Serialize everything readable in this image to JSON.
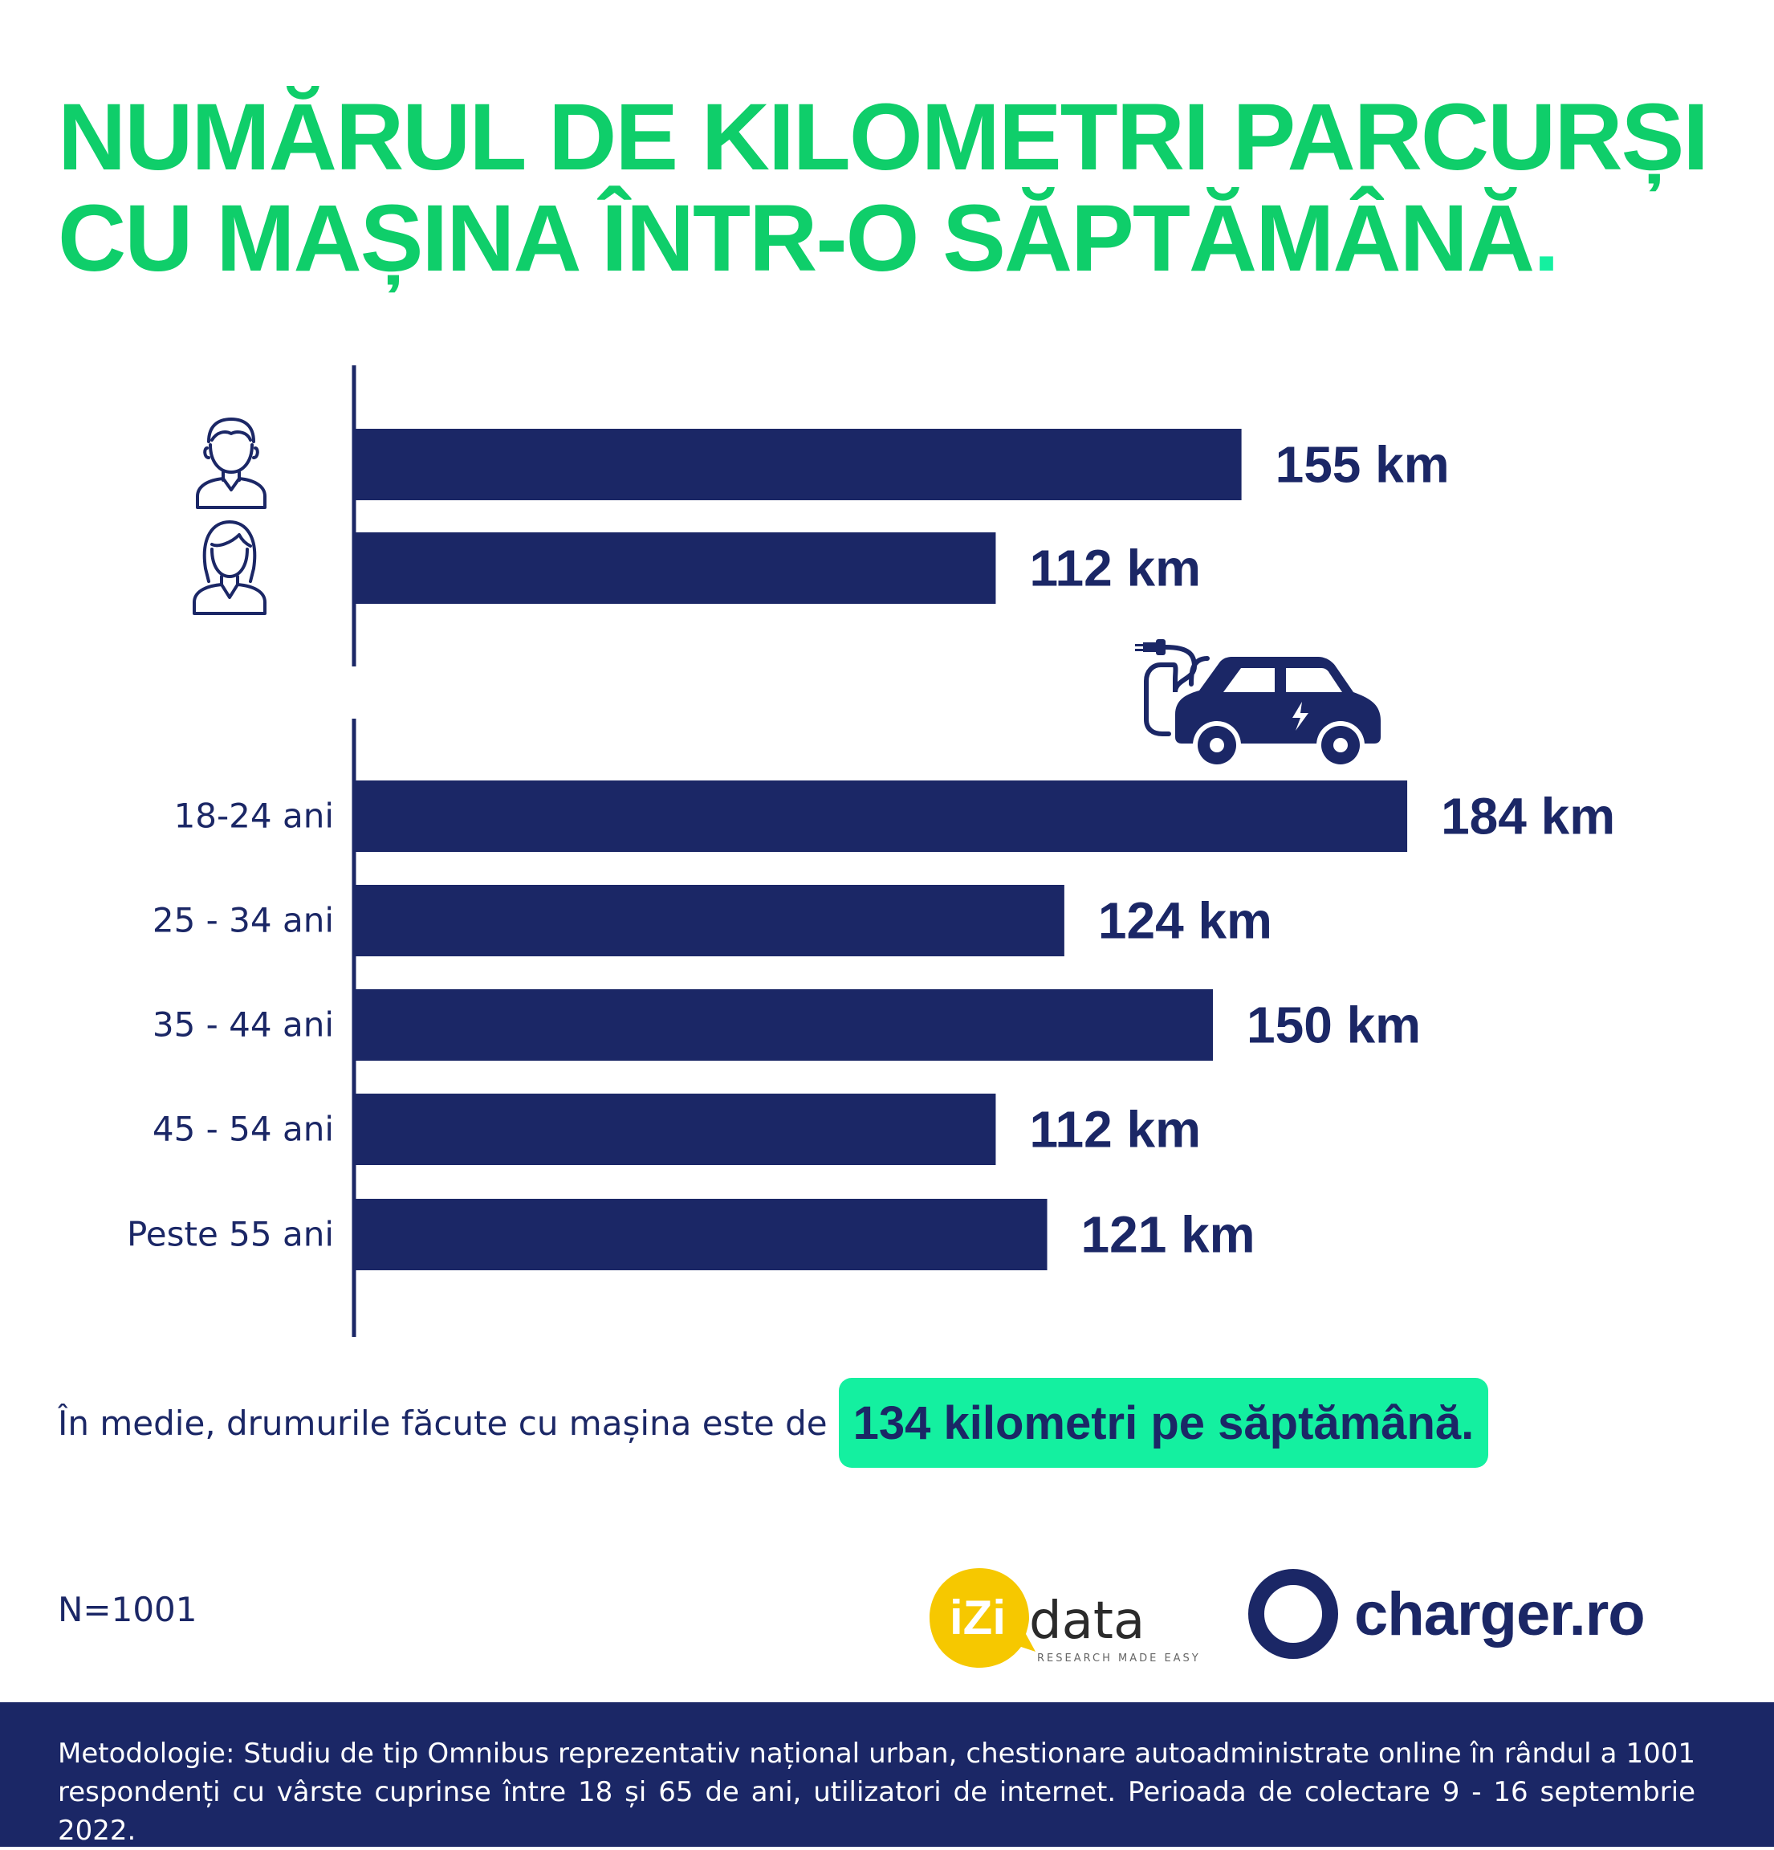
{
  "title": {
    "line1": "NUMĂRUL DE KILOMETRI PARCURȘI",
    "line2": "CU MAȘINA ÎNTR-O SĂPTĂMÂNĂ",
    "dot": "."
  },
  "colors": {
    "navy": "#1b2766",
    "green": "#0fce6a",
    "highlight": "#14f0a0",
    "izi_yellow": "#f6c800"
  },
  "icons": {
    "gender_1": "man-icon",
    "gender_2": "woman-icon",
    "age_group": "electric-car-icon"
  },
  "chart_data": [
    {
      "type": "bar",
      "orientation": "horizontal",
      "categories": [
        "",
        ""
      ],
      "category_icons": [
        "man-icon",
        "woman-icon"
      ],
      "values": [
        155,
        112
      ],
      "value_labels": [
        "155 km",
        "112 km"
      ],
      "unit": "km",
      "xlim": [
        0,
        195
      ],
      "grid": false
    },
    {
      "type": "bar",
      "orientation": "horizontal",
      "categories": [
        "18-24 ani",
        "25 - 34 ani",
        "35 - 44 ani",
        "45 - 54 ani",
        "Peste 55  ani"
      ],
      "values": [
        184,
        124,
        150,
        112,
        121
      ],
      "value_labels": [
        "184 km",
        "124 km",
        "150 km",
        "112 km",
        "121 km"
      ],
      "unit": "km",
      "xlim": [
        0,
        195
      ],
      "grid": false
    }
  ],
  "summary": {
    "text": "În medie, drumurile făcute cu mașina este de",
    "highlight": "134 kilometri pe săptămână."
  },
  "sample_size": "N=1001",
  "logos": {
    "izi_mark": "iZi",
    "izi_word": "data",
    "izi_tagline": "RESEARCH MADE EASY",
    "charger": "charger.ro"
  },
  "footer": {
    "methodology": "Metodologie: Studiu de tip Omnibus reprezentativ național urban, chestionare autoadministrate online în rândul a 1001 respondenți cu vârste cuprinse între 18 și 65 de ani, utilizatori de internet. Perioada de colectare 9 - 16 septembrie 2022."
  }
}
